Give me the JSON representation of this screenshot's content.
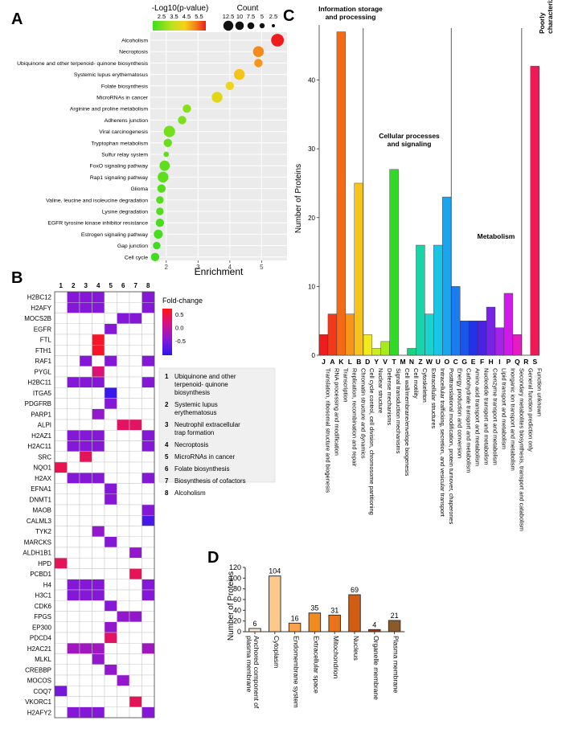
{
  "chart_data": [
    {
      "panel": "A",
      "type": "scatter",
      "xlabel": "Enrichment",
      "xlim": [
        1.5,
        5.8
      ],
      "xticks": [
        "2",
        "3",
        "4",
        "5"
      ],
      "legend": {
        "color_title": "-Log10(p-value)",
        "color_ticks": [
          "2.5",
          "3.5",
          "4.5",
          "5.5"
        ],
        "size_title": "Count",
        "size_ticks": [
          "12.5",
          "10",
          "7.5",
          "5",
          "2.5"
        ]
      },
      "points": [
        {
          "term": "Alcoholism",
          "enrichment": 5.5,
          "neglog10p": 5.6,
          "count": 12
        },
        {
          "term": "Necroptosis",
          "enrichment": 4.9,
          "neglog10p": 4.9,
          "count": 8
        },
        {
          "term": "Ubiquinone and other terpenoid- quinone biosynthesis",
          "enrichment": 4.9,
          "neglog10p": 4.8,
          "count": 4
        },
        {
          "term": "Systemic lupus erythematosus",
          "enrichment": 4.3,
          "neglog10p": 4.4,
          "count": 8
        },
        {
          "term": "Folate biosynthesis",
          "enrichment": 4.0,
          "neglog10p": 4.2,
          "count": 4
        },
        {
          "term": "MicroRNAs in cancer",
          "enrichment": 3.6,
          "neglog10p": 4.0,
          "count": 8
        },
        {
          "term": "Arginine and proline metabolism",
          "enrichment": 2.65,
          "neglog10p": 3.0,
          "count": 4
        },
        {
          "term": "Adherens junction",
          "enrichment": 2.5,
          "neglog10p": 2.9,
          "count": 4
        },
        {
          "term": "Viral carcinogenesis",
          "enrichment": 2.1,
          "neglog10p": 2.8,
          "count": 9
        },
        {
          "term": "Tryptophan metabolism",
          "enrichment": 2.05,
          "neglog10p": 2.7,
          "count": 4
        },
        {
          "term": "Sulfur relay system",
          "enrichment": 2.0,
          "neglog10p": 2.6,
          "count": 1
        },
        {
          "term": "FoxO signaling pathway",
          "enrichment": 1.95,
          "neglog10p": 2.6,
          "count": 7
        },
        {
          "term": "Rap1 signaling pathway",
          "enrichment": 1.9,
          "neglog10p": 2.6,
          "count": 8
        },
        {
          "term": "Glioma",
          "enrichment": 1.85,
          "neglog10p": 2.5,
          "count": 4
        },
        {
          "term": "Valine, leucine and isoleucine degradation",
          "enrichment": 1.8,
          "neglog10p": 2.5,
          "count": 3
        },
        {
          "term": "Lysine degradation",
          "enrichment": 1.8,
          "neglog10p": 2.5,
          "count": 3
        },
        {
          "term": "EGFR tyrosine kinase inhibitor resistance",
          "enrichment": 1.8,
          "neglog10p": 2.4,
          "count": 4
        },
        {
          "term": "Estrogen signaling pathway",
          "enrichment": 1.75,
          "neglog10p": 2.4,
          "count": 5
        },
        {
          "term": "Gap junction",
          "enrichment": 1.7,
          "neglog10p": 2.3,
          "count": 3
        },
        {
          "term": "Cell cycle",
          "enrichment": 1.65,
          "neglog10p": 2.3,
          "count": 4
        }
      ]
    },
    {
      "panel": "B",
      "type": "heatmap",
      "colorbar_title": "Fold-change",
      "colorbar_ticks": [
        "0.5",
        "0.0",
        "-0.5"
      ],
      "columns": [
        "1",
        "2",
        "3",
        "4",
        "5",
        "6",
        "7",
        "8"
      ],
      "pathways": [
        {
          "num": "1",
          "name": "Ubiquinone and other terpenoid- quinone biosynthesis"
        },
        {
          "num": "2",
          "name": "Systemic lupus erythematosus"
        },
        {
          "num": "3",
          "name": "Neutrophil extracellular trap formation"
        },
        {
          "num": "4",
          "name": "Necroptosis"
        },
        {
          "num": "5",
          "name": "MicroRNAs in cancer"
        },
        {
          "num": "6",
          "name": "Folate biosynthesis"
        },
        {
          "num": "7",
          "name": "Biosynthesis of cofactors"
        },
        {
          "num": "8",
          "name": "Alcoholism"
        }
      ],
      "rows": [
        {
          "gene": "H2BC12",
          "cells": [
            null,
            -0.4,
            -0.4,
            -0.4,
            null,
            null,
            null,
            -0.4
          ]
        },
        {
          "gene": "H2AFY",
          "cells": [
            null,
            -0.4,
            -0.4,
            -0.4,
            null,
            null,
            null,
            -0.4
          ]
        },
        {
          "gene": "MOCS2B",
          "cells": [
            null,
            null,
            null,
            null,
            null,
            -0.4,
            -0.4,
            null
          ]
        },
        {
          "gene": "EGFR",
          "cells": [
            null,
            null,
            null,
            null,
            -0.4,
            null,
            null,
            null
          ]
        },
        {
          "gene": "FTL",
          "cells": [
            null,
            null,
            null,
            0.7,
            null,
            null,
            null,
            null
          ]
        },
        {
          "gene": "FTH1",
          "cells": [
            null,
            null,
            null,
            0.7,
            null,
            null,
            null,
            null
          ]
        },
        {
          "gene": "RAF1",
          "cells": [
            null,
            null,
            -0.4,
            null,
            -0.4,
            null,
            null,
            -0.4
          ]
        },
        {
          "gene": "PYGL",
          "cells": [
            null,
            null,
            null,
            0.3,
            null,
            null,
            null,
            null
          ]
        },
        {
          "gene": "H2BC11",
          "cells": [
            null,
            -0.4,
            -0.4,
            -0.4,
            null,
            null,
            null,
            -0.4
          ]
        },
        {
          "gene": "ITGA5",
          "cells": [
            null,
            null,
            null,
            null,
            -0.9,
            null,
            null,
            null
          ]
        },
        {
          "gene": "PDGFRB",
          "cells": [
            null,
            null,
            null,
            null,
            -0.4,
            null,
            null,
            null
          ]
        },
        {
          "gene": "PARP1",
          "cells": [
            null,
            null,
            null,
            -0.3,
            null,
            null,
            null,
            null
          ]
        },
        {
          "gene": "ALPI",
          "cells": [
            null,
            null,
            null,
            null,
            null,
            0.4,
            0.4,
            null
          ]
        },
        {
          "gene": "H2AZ1",
          "cells": [
            null,
            -0.4,
            -0.4,
            -0.4,
            null,
            null,
            null,
            -0.4
          ]
        },
        {
          "gene": "H2AC11",
          "cells": [
            null,
            -0.4,
            -0.4,
            -0.4,
            null,
            null,
            null,
            -0.4
          ]
        },
        {
          "gene": "SRC",
          "cells": [
            null,
            null,
            0.45,
            null,
            null,
            null,
            null,
            null
          ]
        },
        {
          "gene": "NQO1",
          "cells": [
            0.5,
            null,
            null,
            null,
            null,
            null,
            null,
            null
          ]
        },
        {
          "gene": "H2AX",
          "cells": [
            null,
            -0.4,
            -0.4,
            -0.4,
            null,
            null,
            null,
            -0.4
          ]
        },
        {
          "gene": "EFNA1",
          "cells": [
            null,
            null,
            null,
            null,
            -0.4,
            null,
            null,
            null
          ]
        },
        {
          "gene": "DNMT1",
          "cells": [
            null,
            null,
            null,
            null,
            -0.4,
            null,
            null,
            null
          ]
        },
        {
          "gene": "MAOB",
          "cells": [
            null,
            null,
            null,
            null,
            null,
            null,
            null,
            -0.4
          ]
        },
        {
          "gene": "CALML3",
          "cells": [
            null,
            null,
            null,
            null,
            null,
            null,
            null,
            -0.8
          ]
        },
        {
          "gene": "TYK2",
          "cells": [
            null,
            null,
            null,
            -0.3,
            null,
            null,
            null,
            null
          ]
        },
        {
          "gene": "MARCKS",
          "cells": [
            null,
            null,
            null,
            null,
            -0.4,
            null,
            null,
            null
          ]
        },
        {
          "gene": "ALDH1B1",
          "cells": [
            null,
            null,
            null,
            null,
            null,
            null,
            -0.3,
            null
          ]
        },
        {
          "gene": "HPD",
          "cells": [
            0.45,
            null,
            null,
            null,
            null,
            null,
            null,
            null
          ]
        },
        {
          "gene": "PCBD1",
          "cells": [
            null,
            null,
            null,
            null,
            null,
            null,
            0.45,
            null
          ]
        },
        {
          "gene": "H4",
          "cells": [
            null,
            -0.4,
            -0.4,
            -0.4,
            null,
            null,
            null,
            -0.4
          ]
        },
        {
          "gene": "H3C1",
          "cells": [
            null,
            -0.4,
            -0.4,
            -0.4,
            null,
            null,
            null,
            -0.4
          ]
        },
        {
          "gene": "CDK6",
          "cells": [
            null,
            null,
            null,
            null,
            -0.4,
            null,
            null,
            null
          ]
        },
        {
          "gene": "FPGS",
          "cells": [
            null,
            null,
            null,
            null,
            null,
            -0.3,
            -0.3,
            null
          ]
        },
        {
          "gene": "EP300",
          "cells": [
            null,
            null,
            null,
            null,
            -0.3,
            null,
            null,
            null
          ]
        },
        {
          "gene": "PDCD4",
          "cells": [
            null,
            null,
            null,
            null,
            0.4,
            null,
            null,
            null
          ]
        },
        {
          "gene": "H2AC21",
          "cells": [
            null,
            -0.2,
            -0.2,
            -0.2,
            null,
            null,
            null,
            -0.2
          ]
        },
        {
          "gene": "MLKL",
          "cells": [
            null,
            null,
            null,
            -0.3,
            null,
            null,
            null,
            null
          ]
        },
        {
          "gene": "CREBBP",
          "cells": [
            null,
            null,
            null,
            null,
            -0.3,
            null,
            null,
            null
          ]
        },
        {
          "gene": "MOCOS",
          "cells": [
            null,
            null,
            null,
            null,
            null,
            -0.3,
            null,
            null
          ]
        },
        {
          "gene": "COQ7",
          "cells": [
            -0.5,
            null,
            null,
            null,
            null,
            null,
            null,
            null
          ]
        },
        {
          "gene": "VKORC1",
          "cells": [
            null,
            null,
            null,
            null,
            null,
            null,
            0.45,
            null
          ]
        },
        {
          "gene": "H2AFY2",
          "cells": [
            null,
            -0.4,
            -0.4,
            -0.4,
            null,
            null,
            null,
            -0.4
          ]
        }
      ]
    },
    {
      "panel": "C",
      "type": "bar",
      "ylabel": "Number of Proteins",
      "ylim": [
        0,
        48
      ],
      "yticks": [
        "0",
        "10",
        "20",
        "30",
        "40"
      ],
      "groups": [
        {
          "label_line1": "Information storage",
          "label_line2": "and processing",
          "start": 0,
          "end": 4
        },
        {
          "label_line1": "Cellular processes",
          "label_line2": "and signaling",
          "start": 5,
          "end": 14
        },
        {
          "label_line1": "Metabolism",
          "label_line2": "",
          "start": 15,
          "end": 22
        },
        {
          "label_line1": "Poorly",
          "label_line2": "characterized",
          "start": 23,
          "end": 24
        }
      ],
      "categories": [
        {
          "code": "J",
          "name": "Translation, ribosomal structure and biogenesis",
          "value": 3,
          "color": "#ee1c1c"
        },
        {
          "code": "A",
          "name": "RNA processing and modification",
          "value": 6,
          "color": "#f2391a"
        },
        {
          "code": "K",
          "name": "Transcription",
          "value": 47,
          "color": "#f56a14"
        },
        {
          "code": "L",
          "name": "Replication, recombination and repair",
          "value": 6,
          "color": "#f7951a"
        },
        {
          "code": "B",
          "name": "Chromatin structure and dynamics",
          "value": 25,
          "color": "#f6c21c"
        },
        {
          "code": "D",
          "name": "Cell cycle control, cell division, chromosome partitioning",
          "value": 3,
          "color": "#f2ea1c"
        },
        {
          "code": "Y",
          "name": "Nuclear structure",
          "value": 1,
          "color": "#cdee1c"
        },
        {
          "code": "V",
          "name": "Defense mechanisms",
          "value": 2,
          "color": "#a6ec1a"
        },
        {
          "code": "T",
          "name": "Signal transduction mechanisms",
          "value": 27,
          "color": "#2fdb24"
        },
        {
          "code": "M",
          "name": "Cell wall/membrane/envelope biogenesis",
          "value": 0,
          "color": "#1ad650"
        },
        {
          "code": "N",
          "name": "Cell motility",
          "value": 1,
          "color": "#17d37d"
        },
        {
          "code": "Z",
          "name": "Cytoskeleton",
          "value": 16,
          "color": "#18d4a8"
        },
        {
          "code": "W",
          "name": "Extracellular structures",
          "value": 6,
          "color": "#19d3cc"
        },
        {
          "code": "U",
          "name": "Intracellular trafficking, secretion, and vesicular transport",
          "value": 16,
          "color": "#19c6e6"
        },
        {
          "code": "O",
          "name": "Posttranslational modification, protein turnover, chaperones",
          "value": 23,
          "color": "#1aa5ee"
        },
        {
          "code": "C",
          "name": "Energy production and conversion",
          "value": 10,
          "color": "#1a7cee"
        },
        {
          "code": "G",
          "name": "Carbohydrate transport and metabolism",
          "value": 5,
          "color": "#1a55ec"
        },
        {
          "code": "E",
          "name": "Amino acid transport and metabolism",
          "value": 5,
          "color": "#2233e6"
        },
        {
          "code": "F",
          "name": "Nucleotide transport and metabolism",
          "value": 5,
          "color": "#4a22e6"
        },
        {
          "code": "H",
          "name": "Coenzyme transport and metabolism",
          "value": 7,
          "color": "#7822e6"
        },
        {
          "code": "I",
          "name": "Lipid transport and metabolism",
          "value": 4,
          "color": "#a522e8"
        },
        {
          "code": "P",
          "name": "Inorganic ion transport and metabolism",
          "value": 9,
          "color": "#d21ae8"
        },
        {
          "code": "Q",
          "name": "Secondary metabolites biosynthesis, transport and catabolism",
          "value": 3,
          "color": "#e81ac4"
        },
        {
          "code": "R",
          "name": "General function prediction only",
          "value": 0,
          "color": "#ec1a8c"
        },
        {
          "code": "S",
          "name": "Function unknown",
          "value": 42,
          "color": "#ee1a55"
        }
      ]
    },
    {
      "panel": "D",
      "type": "bar",
      "ylabel": "Number of Proteins",
      "ylim": [
        0,
        120
      ],
      "yticks": [
        "0",
        "20",
        "40",
        "60",
        "80",
        "100",
        "120"
      ],
      "categories": [
        {
          "name_line1": "Anchored component of",
          "name_line2": "plasma membrane",
          "value": 6,
          "label": "6",
          "color": "#fde9d2"
        },
        {
          "name_line1": "Cytoplasm",
          "name_line2": "",
          "value": 104,
          "label": "104",
          "color": "#fcc98c"
        },
        {
          "name_line1": "Endomembrane system",
          "name_line2": "",
          "value": 16,
          "label": "16",
          "color": "#f7a24c"
        },
        {
          "name_line1": "Extracellular space",
          "name_line2": "",
          "value": 35,
          "label": "35",
          "color": "#f28a1e"
        },
        {
          "name_line1": "Mitochondrion",
          "name_line2": "",
          "value": 31,
          "label": "31",
          "color": "#e8731a"
        },
        {
          "name_line1": "Nucleus",
          "name_line2": "",
          "value": 69,
          "label": "69",
          "color": "#d25c12"
        },
        {
          "name_line1": "Organelle membrane",
          "name_line2": "",
          "value": 4,
          "label": "4",
          "color": "#a2380e"
        },
        {
          "name_line1": "Plasma membrane",
          "name_line2": "",
          "value": 21,
          "label": "21",
          "color": "#8a5a2a"
        }
      ]
    }
  ],
  "panel_labels": {
    "a": "A",
    "b": "B",
    "c": "C",
    "d": "D"
  }
}
